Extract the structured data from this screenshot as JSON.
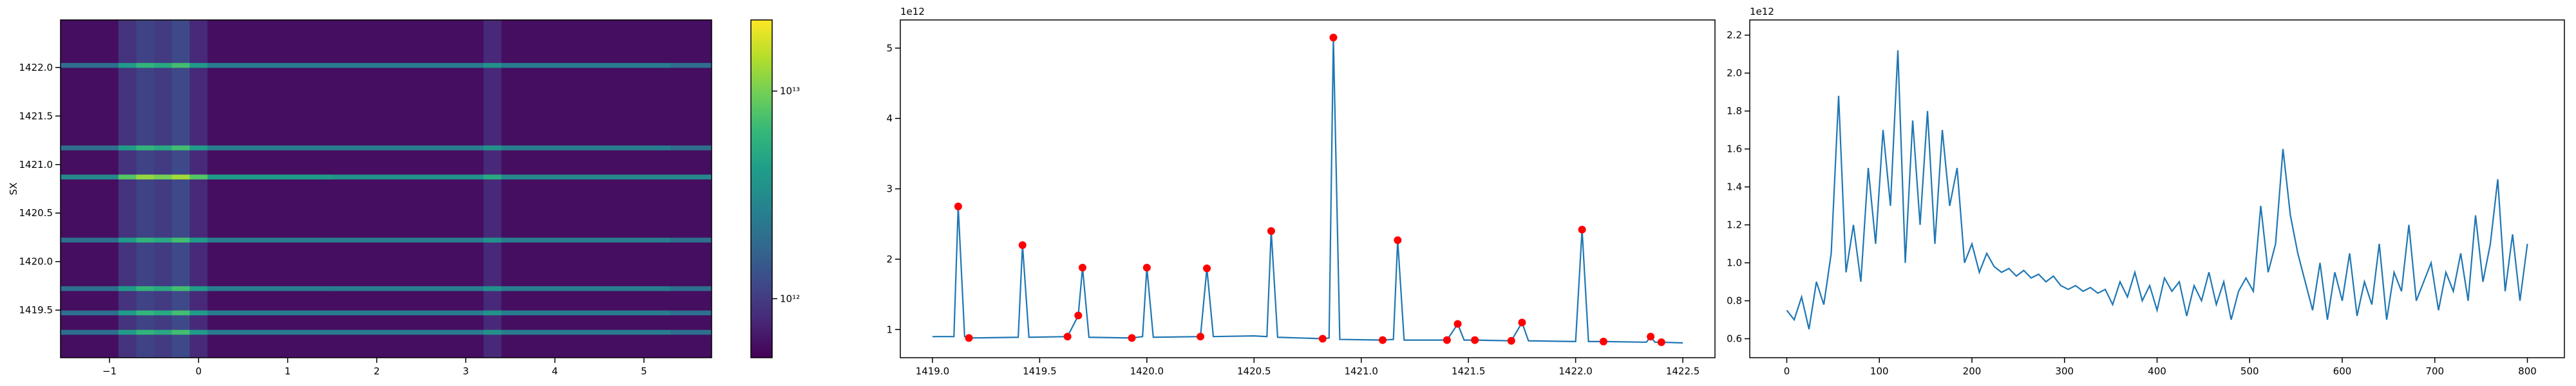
{
  "chart_data": [
    {
      "type": "heatmap",
      "ylabel": "SX",
      "colormap": "viridis",
      "log_color": true,
      "xlim": [
        -1.55,
        5.76
      ],
      "ylim": [
        1419.01,
        1422.49
      ],
      "xticks": [
        {
          "value": -1,
          "label": "−1"
        },
        0,
        1,
        2,
        3,
        4,
        5
      ],
      "yticks": [
        1419.5,
        {
          "value": 1420,
          "label": "1420.0"
        },
        1420.5,
        {
          "value": 1421,
          "label": "1421.0"
        },
        1421.5,
        {
          "value": 1422,
          "label": "1422.0"
        }
      ],
      "clim": [
        520000000000.0,
        22000000000000.0
      ],
      "cticks": [
        {
          "value": 1000000000000.0,
          "label": "10¹²"
        },
        {
          "value": 10000000000000.0,
          "label": "10¹³"
        }
      ],
      "x_edges": [
        -1.55,
        -0.9,
        -0.7,
        -0.5,
        -0.3,
        -0.1,
        0.1,
        1.5,
        3.2,
        3.4,
        5.3,
        5.76
      ],
      "y_edges": [
        1419.01,
        1419.25,
        1419.3,
        1419.45,
        1419.5,
        1419.7,
        1419.75,
        1420.2,
        1420.25,
        1420.85,
        1420.9,
        1421.15,
        1421.2,
        1422.0,
        1422.05,
        1422.49
      ],
      "z": [
        [
          600000000000.0,
          900000000000.0,
          1100000000000.0,
          1000000000000.0,
          1200000000000.0,
          800000000000.0,
          600000000000.0,
          600000000000.0,
          800000000000.0,
          600000000000.0,
          600000000000.0
        ],
        [
          2000000000000.0,
          4000000000000.0,
          6000000000000.0,
          5000000000000.0,
          7000000000000.0,
          4000000000000.0,
          2500000000000.0,
          2500000000000.0,
          3500000000000.0,
          2500000000000.0,
          2000000000000.0
        ],
        [
          600000000000.0,
          900000000000.0,
          1100000000000.0,
          1000000000000.0,
          1200000000000.0,
          800000000000.0,
          600000000000.0,
          600000000000.0,
          800000000000.0,
          600000000000.0,
          600000000000.0
        ],
        [
          2000000000000.0,
          4000000000000.0,
          6000000000000.0,
          5000000000000.0,
          7000000000000.0,
          4000000000000.0,
          2500000000000.0,
          2500000000000.0,
          3500000000000.0,
          2500000000000.0,
          2000000000000.0
        ],
        [
          600000000000.0,
          900000000000.0,
          1100000000000.0,
          1000000000000.0,
          1200000000000.0,
          800000000000.0,
          600000000000.0,
          600000000000.0,
          800000000000.0,
          600000000000.0,
          600000000000.0
        ],
        [
          2000000000000.0,
          4000000000000.0,
          6000000000000.0,
          5000000000000.0,
          7000000000000.0,
          4000000000000.0,
          2500000000000.0,
          2500000000000.0,
          3500000000000.0,
          2500000000000.0,
          2000000000000.0
        ],
        [
          600000000000.0,
          900000000000.0,
          1100000000000.0,
          1000000000000.0,
          1200000000000.0,
          800000000000.0,
          600000000000.0,
          600000000000.0,
          800000000000.0,
          600000000000.0,
          600000000000.0
        ],
        [
          2000000000000.0,
          4000000000000.0,
          6000000000000.0,
          5000000000000.0,
          7000000000000.0,
          4000000000000.0,
          2500000000000.0,
          2500000000000.0,
          3500000000000.0,
          2500000000000.0,
          2000000000000.0
        ],
        [
          600000000000.0,
          900000000000.0,
          1100000000000.0,
          1000000000000.0,
          1200000000000.0,
          800000000000.0,
          600000000000.0,
          600000000000.0,
          800000000000.0,
          600000000000.0,
          600000000000.0
        ],
        [
          3000000000000.0,
          8000000000000.0,
          12000000000000.0,
          10000000000000.0,
          13000000000000.0,
          8000000000000.0,
          4000000000000.0,
          3500000000000.0,
          5000000000000.0,
          3000000000000.0,
          3000000000000.0
        ],
        [
          600000000000.0,
          900000000000.0,
          1100000000000.0,
          1000000000000.0,
          1200000000000.0,
          800000000000.0,
          600000000000.0,
          600000000000.0,
          800000000000.0,
          600000000000.0,
          600000000000.0
        ],
        [
          2000000000000.0,
          4000000000000.0,
          6000000000000.0,
          5000000000000.0,
          7000000000000.0,
          4000000000000.0,
          2500000000000.0,
          2500000000000.0,
          3500000000000.0,
          2500000000000.0,
          2000000000000.0
        ],
        [
          600000000000.0,
          900000000000.0,
          1100000000000.0,
          1000000000000.0,
          1200000000000.0,
          800000000000.0,
          600000000000.0,
          600000000000.0,
          800000000000.0,
          600000000000.0,
          600000000000.0
        ],
        [
          2000000000000.0,
          4000000000000.0,
          6000000000000.0,
          5000000000000.0,
          7000000000000.0,
          4000000000000.0,
          2500000000000.0,
          2500000000000.0,
          3500000000000.0,
          2500000000000.0,
          2000000000000.0
        ],
        [
          600000000000.0,
          900000000000.0,
          1100000000000.0,
          1000000000000.0,
          1200000000000.0,
          800000000000.0,
          600000000000.0,
          600000000000.0,
          800000000000.0,
          600000000000.0,
          600000000000.0
        ]
      ]
    },
    {
      "type": "line",
      "offset_label": "1e12",
      "xlim": [
        1418.85,
        1422.65
      ],
      "ylim": [
        0.6,
        5.4
      ],
      "xticks": [
        {
          "value": 1419,
          "label": "1419.0"
        },
        1419.5,
        {
          "value": 1420,
          "label": "1420.0"
        },
        1420.5,
        {
          "value": 1421,
          "label": "1421.0"
        },
        1421.5,
        {
          "value": 1422,
          "label": "1422.0"
        },
        1422.5
      ],
      "yticks": [
        1,
        2,
        3,
        4,
        5
      ],
      "series": [
        {
          "color": "#1f77b4",
          "style": "line",
          "x": [
            1419.0,
            1419.1,
            1419.12,
            1419.15,
            1419.17,
            1419.4,
            1419.42,
            1419.45,
            1419.63,
            1419.68,
            1419.7,
            1419.73,
            1419.93,
            1419.98,
            1420.0,
            1420.03,
            1420.25,
            1420.28,
            1420.31,
            1420.5,
            1420.56,
            1420.58,
            1420.61,
            1420.82,
            1420.85,
            1420.87,
            1420.9,
            1421.1,
            1421.15,
            1421.17,
            1421.2,
            1421.4,
            1421.45,
            1421.48,
            1421.53,
            1421.7,
            1421.75,
            1421.78,
            1422.0,
            1422.03,
            1422.06,
            1422.13,
            1422.33,
            1422.35,
            1422.37,
            1422.4,
            1422.5
          ],
          "values": [
            0.9,
            0.9,
            2.75,
            0.9,
            0.88,
            0.89,
            2.2,
            0.89,
            0.9,
            1.2,
            1.88,
            0.89,
            0.88,
            0.9,
            1.88,
            0.89,
            0.9,
            1.87,
            0.9,
            0.91,
            0.9,
            2.4,
            0.89,
            0.87,
            0.88,
            5.15,
            0.86,
            0.85,
            0.86,
            2.27,
            0.85,
            0.85,
            1.08,
            0.85,
            0.85,
            0.84,
            1.1,
            0.84,
            0.83,
            2.42,
            0.83,
            0.83,
            0.82,
            0.9,
            0.82,
            0.82,
            0.81
          ]
        },
        {
          "color": "#ff0000",
          "style": "points",
          "x": [
            1419.12,
            1419.17,
            1419.42,
            1419.63,
            1419.68,
            1419.7,
            1419.93,
            1420.0,
            1420.25,
            1420.28,
            1420.58,
            1420.82,
            1420.87,
            1421.1,
            1421.17,
            1421.4,
            1421.45,
            1421.53,
            1421.7,
            1421.75,
            1422.03,
            1422.13,
            1422.35,
            1422.4
          ],
          "values": [
            2.75,
            0.88,
            2.2,
            0.9,
            1.2,
            1.88,
            0.88,
            1.88,
            0.9,
            1.87,
            2.4,
            0.87,
            5.15,
            0.85,
            2.27,
            0.85,
            1.08,
            0.85,
            0.84,
            1.1,
            2.42,
            0.83,
            0.9,
            0.82
          ]
        }
      ]
    },
    {
      "type": "line",
      "offset_label": "1e12",
      "xlim": [
        -40,
        840
      ],
      "ylim": [
        0.5,
        2.28
      ],
      "xticks": [
        0,
        100,
        200,
        300,
        400,
        500,
        600,
        700,
        800
      ],
      "yticks": [
        0.6,
        0.8,
        {
          "value": 1,
          "label": "1.0"
        },
        1.2,
        1.4,
        1.6,
        1.8,
        {
          "value": 2,
          "label": "2.0"
        },
        2.2
      ],
      "series": [
        {
          "color": "#1f77b4",
          "style": "line",
          "x": [
            0,
            8,
            16,
            24,
            32,
            40,
            48,
            56,
            64,
            72,
            80,
            88,
            96,
            104,
            112,
            120,
            128,
            136,
            144,
            152,
            160,
            168,
            176,
            184,
            192,
            200,
            208,
            216,
            224,
            232,
            240,
            248,
            256,
            264,
            272,
            280,
            288,
            296,
            304,
            312,
            320,
            328,
            336,
            344,
            352,
            360,
            368,
            376,
            384,
            392,
            400,
            408,
            416,
            424,
            432,
            440,
            448,
            456,
            464,
            472,
            480,
            488,
            496,
            504,
            512,
            520,
            528,
            536,
            544,
            552,
            560,
            568,
            576,
            584,
            592,
            600,
            608,
            616,
            624,
            632,
            640,
            648,
            656,
            664,
            672,
            680,
            688,
            696,
            704,
            712,
            720,
            728,
            736,
            744,
            752,
            760,
            768,
            776,
            784,
            792,
            800
          ],
          "values": [
            0.75,
            0.7,
            0.82,
            0.65,
            0.9,
            0.78,
            1.05,
            1.88,
            0.95,
            1.2,
            0.9,
            1.5,
            1.1,
            1.7,
            1.3,
            2.12,
            1.0,
            1.75,
            1.2,
            1.8,
            1.1,
            1.7,
            1.3,
            1.5,
            1.0,
            1.1,
            0.95,
            1.05,
            0.98,
            0.95,
            0.97,
            0.93,
            0.96,
            0.92,
            0.94,
            0.9,
            0.93,
            0.88,
            0.86,
            0.88,
            0.85,
            0.87,
            0.84,
            0.86,
            0.78,
            0.9,
            0.82,
            0.95,
            0.8,
            0.88,
            0.75,
            0.92,
            0.85,
            0.9,
            0.72,
            0.88,
            0.8,
            0.95,
            0.78,
            0.9,
            0.7,
            0.85,
            0.92,
            0.85,
            1.3,
            0.95,
            1.1,
            1.6,
            1.25,
            1.05,
            0.9,
            0.75,
            1.0,
            0.7,
            0.95,
            0.8,
            1.05,
            0.72,
            0.9,
            0.78,
            1.1,
            0.7,
            0.95,
            0.85,
            1.2,
            0.8,
            0.9,
            1.0,
            0.75,
            0.95,
            0.85,
            1.05,
            0.8,
            1.25,
            0.9,
            1.1,
            1.44,
            0.85,
            1.15,
            0.8,
            1.1
          ]
        }
      ]
    }
  ]
}
